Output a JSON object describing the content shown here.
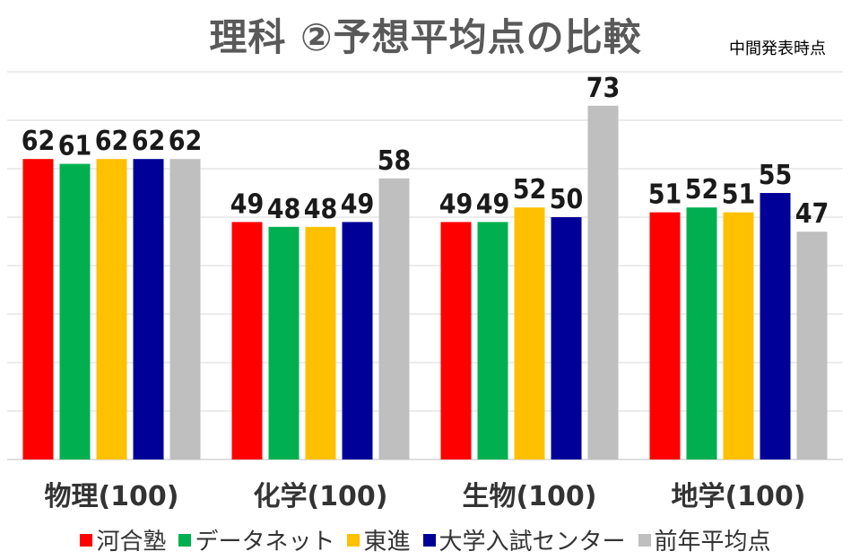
{
  "chart_data": {
    "type": "bar",
    "title": "理科 ②予想平均点の比較",
    "subtitle": "中間発表時点",
    "categories": [
      "物理(100)",
      "化学(100)",
      "生物(100)",
      "地学(100)"
    ],
    "series": [
      {
        "name": "河合塾",
        "color": "#FF0000",
        "values": [
          62,
          49,
          49,
          51
        ]
      },
      {
        "name": "データネット",
        "color": "#00B050",
        "values": [
          61,
          48,
          49,
          52
        ]
      },
      {
        "name": "東進",
        "color": "#FFC000",
        "values": [
          62,
          48,
          52,
          51
        ]
      },
      {
        "name": "大学入試センター",
        "color": "#000099",
        "values": [
          62,
          49,
          50,
          55
        ]
      },
      {
        "name": "前年平均点",
        "color": "#BFBFBF",
        "values": [
          62,
          58,
          73,
          47
        ]
      }
    ],
    "ylim": [
      0,
      80
    ],
    "grid": true,
    "legend_position": "bottom"
  }
}
